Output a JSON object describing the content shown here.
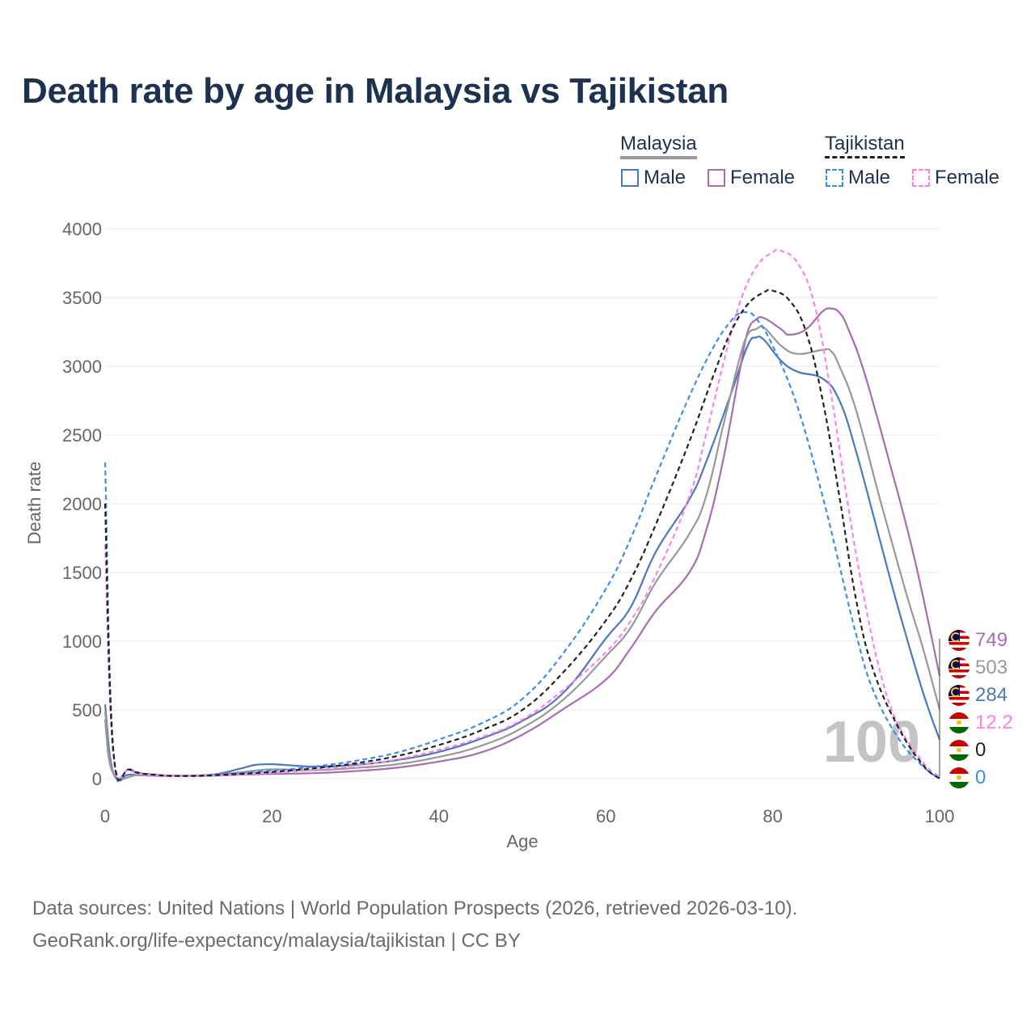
{
  "title": "Death rate by age in Malaysia vs Tajikistan",
  "legend": {
    "country1": "Malaysia",
    "country2": "Tajikistan",
    "male": "Male",
    "female": "Female"
  },
  "colors": {
    "malaysia_male": "#4a78c0",
    "malaysia_female": "#a96bb4",
    "malaysia_total": "#999999",
    "tajikistan_male": "#3a8ef0",
    "tajikistan_female": "#ff80e8",
    "tajikistan_total": "#222222",
    "title": "#1d3150"
  },
  "watermark": "100",
  "end_labels": {
    "malaysia_female": "749",
    "malaysia_total": "503",
    "malaysia_male": "284",
    "tajikistan_female": "12.2",
    "tajikistan_total": "0",
    "tajikistan_male": "0"
  },
  "footer": {
    "line1": "Data sources: United Nations | World Population Prospects (2026, retrieved 2026-03-10).",
    "line2": "GeoRank.org/life-expectancy/malaysia/tajikistan | CC BY"
  },
  "chart_data": {
    "type": "line",
    "xlabel": "Age",
    "ylabel": "Death rate",
    "xlim": [
      0,
      100
    ],
    "ylim": [
      0,
      4000
    ],
    "xticks": [
      0,
      20,
      40,
      60,
      80,
      100
    ],
    "yticks": [
      0,
      500,
      1000,
      1500,
      2000,
      2500,
      3000,
      3500,
      4000
    ],
    "series": [
      {
        "name": "Malaysia Male",
        "color": "#4a78c0",
        "dash": false,
        "points": [
          [
            0,
            540
          ],
          [
            1,
            40
          ],
          [
            3,
            30
          ],
          [
            6,
            22
          ],
          [
            10,
            22
          ],
          [
            13,
            30
          ],
          [
            16,
            70
          ],
          [
            18,
            100
          ],
          [
            20,
            105
          ],
          [
            22,
            98
          ],
          [
            25,
            88
          ],
          [
            30,
            100
          ],
          [
            35,
            135
          ],
          [
            40,
            195
          ],
          [
            45,
            290
          ],
          [
            50,
            420
          ],
          [
            55,
            630
          ],
          [
            60,
            1020
          ],
          [
            63,
            1250
          ],
          [
            66,
            1650
          ],
          [
            70,
            2030
          ],
          [
            72,
            2300
          ],
          [
            75,
            2800
          ],
          [
            77,
            3150
          ],
          [
            78,
            3210
          ],
          [
            79,
            3190
          ],
          [
            81,
            3040
          ],
          [
            83,
            2960
          ],
          [
            86,
            2910
          ],
          [
            88,
            2750
          ],
          [
            90,
            2380
          ],
          [
            93,
            1700
          ],
          [
            95,
            1250
          ],
          [
            98,
            630
          ],
          [
            100,
            284
          ]
        ]
      },
      {
        "name": "Malaysia Female",
        "color": "#a96bb4",
        "dash": false,
        "points": [
          [
            0,
            430
          ],
          [
            1,
            35
          ],
          [
            4,
            25
          ],
          [
            8,
            18
          ],
          [
            12,
            20
          ],
          [
            16,
            28
          ],
          [
            20,
            35
          ],
          [
            25,
            40
          ],
          [
            30,
            55
          ],
          [
            35,
            80
          ],
          [
            40,
            125
          ],
          [
            45,
            190
          ],
          [
            50,
            320
          ],
          [
            55,
            510
          ],
          [
            60,
            720
          ],
          [
            63,
            950
          ],
          [
            66,
            1220
          ],
          [
            70,
            1500
          ],
          [
            72,
            1800
          ],
          [
            74,
            2300
          ],
          [
            76,
            2950
          ],
          [
            77,
            3250
          ],
          [
            78,
            3340
          ],
          [
            79,
            3350
          ],
          [
            81,
            3270
          ],
          [
            82,
            3230
          ],
          [
            84,
            3270
          ],
          [
            86,
            3400
          ],
          [
            87,
            3420
          ],
          [
            88,
            3390
          ],
          [
            89,
            3280
          ],
          [
            91,
            2950
          ],
          [
            94,
            2300
          ],
          [
            97,
            1600
          ],
          [
            100,
            749
          ]
        ]
      },
      {
        "name": "Malaysia Total",
        "color": "#999999",
        "dash": false,
        "points": [
          [
            0,
            490
          ],
          [
            1,
            38
          ],
          [
            4,
            27
          ],
          [
            8,
            20
          ],
          [
            12,
            22
          ],
          [
            16,
            45
          ],
          [
            20,
            68
          ],
          [
            25,
            62
          ],
          [
            30,
            78
          ],
          [
            35,
            105
          ],
          [
            40,
            158
          ],
          [
            45,
            238
          ],
          [
            50,
            370
          ],
          [
            55,
            580
          ],
          [
            60,
            890
          ],
          [
            63,
            1100
          ],
          [
            66,
            1430
          ],
          [
            70,
            1780
          ],
          [
            72,
            2050
          ],
          [
            74,
            2550
          ],
          [
            76,
            3050
          ],
          [
            77,
            3230
          ],
          [
            78,
            3270
          ],
          [
            79,
            3280
          ],
          [
            81,
            3150
          ],
          [
            83,
            3090
          ],
          [
            86,
            3120
          ],
          [
            87,
            3110
          ],
          [
            88,
            3000
          ],
          [
            90,
            2680
          ],
          [
            93,
            2000
          ],
          [
            96,
            1350
          ],
          [
            98,
            950
          ],
          [
            100,
            503
          ]
        ]
      },
      {
        "name": "Tajikistan Male",
        "color": "#3a8ef0",
        "dash": true,
        "points": [
          [
            0,
            2300
          ],
          [
            1,
            200
          ],
          [
            3,
            70
          ],
          [
            6,
            30
          ],
          [
            10,
            22
          ],
          [
            14,
            32
          ],
          [
            18,
            50
          ],
          [
            22,
            68
          ],
          [
            26,
            95
          ],
          [
            30,
            130
          ],
          [
            35,
            190
          ],
          [
            40,
            285
          ],
          [
            45,
            400
          ],
          [
            50,
            580
          ],
          [
            55,
            920
          ],
          [
            60,
            1380
          ],
          [
            63,
            1750
          ],
          [
            66,
            2200
          ],
          [
            70,
            2780
          ],
          [
            73,
            3150
          ],
          [
            75,
            3330
          ],
          [
            76,
            3385
          ],
          [
            77,
            3390
          ],
          [
            78,
            3350
          ],
          [
            80,
            3150
          ],
          [
            83,
            2700
          ],
          [
            86,
            2050
          ],
          [
            88,
            1550
          ],
          [
            90,
            1050
          ],
          [
            92,
            650
          ],
          [
            95,
            300
          ],
          [
            98,
            90
          ],
          [
            100,
            0
          ]
        ]
      },
      {
        "name": "Tajikistan Female",
        "color": "#ff80e8",
        "dash": true,
        "points": [
          [
            0,
            1700
          ],
          [
            1,
            180
          ],
          [
            3,
            60
          ],
          [
            6,
            25
          ],
          [
            10,
            18
          ],
          [
            14,
            25
          ],
          [
            18,
            35
          ],
          [
            22,
            50
          ],
          [
            26,
            70
          ],
          [
            30,
            95
          ],
          [
            35,
            140
          ],
          [
            40,
            210
          ],
          [
            45,
            300
          ],
          [
            50,
            430
          ],
          [
            55,
            650
          ],
          [
            60,
            920
          ],
          [
            63,
            1150
          ],
          [
            66,
            1480
          ],
          [
            70,
            2050
          ],
          [
            72,
            2500
          ],
          [
            74,
            3000
          ],
          [
            76,
            3450
          ],
          [
            78,
            3720
          ],
          [
            80,
            3830
          ],
          [
            81,
            3840
          ],
          [
            83,
            3750
          ],
          [
            85,
            3450
          ],
          [
            87,
            2800
          ],
          [
            89,
            2000
          ],
          [
            91,
            1300
          ],
          [
            93,
            750
          ],
          [
            95,
            400
          ],
          [
            98,
            120
          ],
          [
            100,
            12.2
          ]
        ]
      },
      {
        "name": "Tajikistan Total",
        "color": "#222222",
        "dash": true,
        "points": [
          [
            0,
            2000
          ],
          [
            1,
            190
          ],
          [
            3,
            65
          ],
          [
            6,
            28
          ],
          [
            10,
            20
          ],
          [
            14,
            28
          ],
          [
            18,
            42
          ],
          [
            22,
            58
          ],
          [
            26,
            82
          ],
          [
            30,
            112
          ],
          [
            35,
            165
          ],
          [
            40,
            245
          ],
          [
            45,
            350
          ],
          [
            50,
            500
          ],
          [
            55,
            780
          ],
          [
            60,
            1150
          ],
          [
            63,
            1450
          ],
          [
            66,
            1850
          ],
          [
            70,
            2450
          ],
          [
            73,
            2950
          ],
          [
            75,
            3250
          ],
          [
            77,
            3450
          ],
          [
            79,
            3540
          ],
          [
            80,
            3550
          ],
          [
            82,
            3480
          ],
          [
            84,
            3250
          ],
          [
            86,
            2750
          ],
          [
            88,
            2050
          ],
          [
            90,
            1300
          ],
          [
            92,
            800
          ],
          [
            95,
            380
          ],
          [
            98,
            100
          ],
          [
            100,
            0
          ]
        ]
      }
    ]
  }
}
